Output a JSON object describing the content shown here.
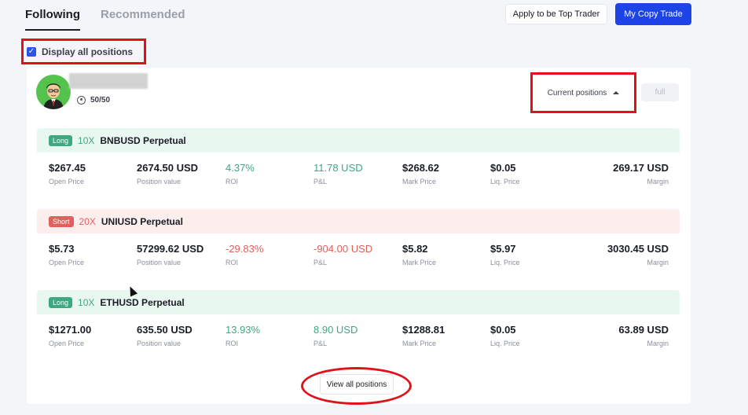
{
  "tabs": [
    {
      "label": "Following",
      "active": true
    },
    {
      "label": "Recommended",
      "active": false
    }
  ],
  "header_buttons": {
    "apply": "Apply to be Top Trader",
    "copy_trade": "My Copy Trade"
  },
  "display_all": {
    "label": "Display all positions",
    "checked": true
  },
  "trader": {
    "followers": "50/50",
    "view_mode": "Current positions",
    "full_button": "full"
  },
  "positions": [
    {
      "side": "Long",
      "leverage": "10X",
      "symbol": "BNBUSD Perpetual",
      "open_price": "$267.45",
      "position_value": "2674.50 USD",
      "roi": "4.37%",
      "pnl": "11.78 USD",
      "mark_price": "$268.62",
      "liq_price": "$0.05",
      "margin": "269.17 USD"
    },
    {
      "side": "Short",
      "leverage": "20X",
      "symbol": "UNIUSD Perpetual",
      "open_price": "$5.73",
      "position_value": "57299.62 USD",
      "roi": "-29.83%",
      "pnl": "-904.00 USD",
      "mark_price": "$5.82",
      "liq_price": "$5.97",
      "margin": "3030.45 USD"
    },
    {
      "side": "Long",
      "leverage": "10X",
      "symbol": "ETHUSD Perpetual",
      "open_price": "$1271.00",
      "position_value": "635.50 USD",
      "roi": "13.93%",
      "pnl": "8.90 USD",
      "mark_price": "$1288.81",
      "liq_price": "$0.05",
      "margin": "63.89 USD"
    }
  ],
  "metric_labels": {
    "open_price": "Open Price",
    "position_value": "Position value",
    "roi": "ROI",
    "pnl": "P&L",
    "mark_price": "Mark Price",
    "liq_price": "Liq. Price",
    "margin": "Margin"
  },
  "view_all": "View all positions",
  "colors": {
    "accent": "#1e43e6",
    "long": "#3ea883",
    "short": "#e0605c",
    "highlight": "#e3101a"
  }
}
